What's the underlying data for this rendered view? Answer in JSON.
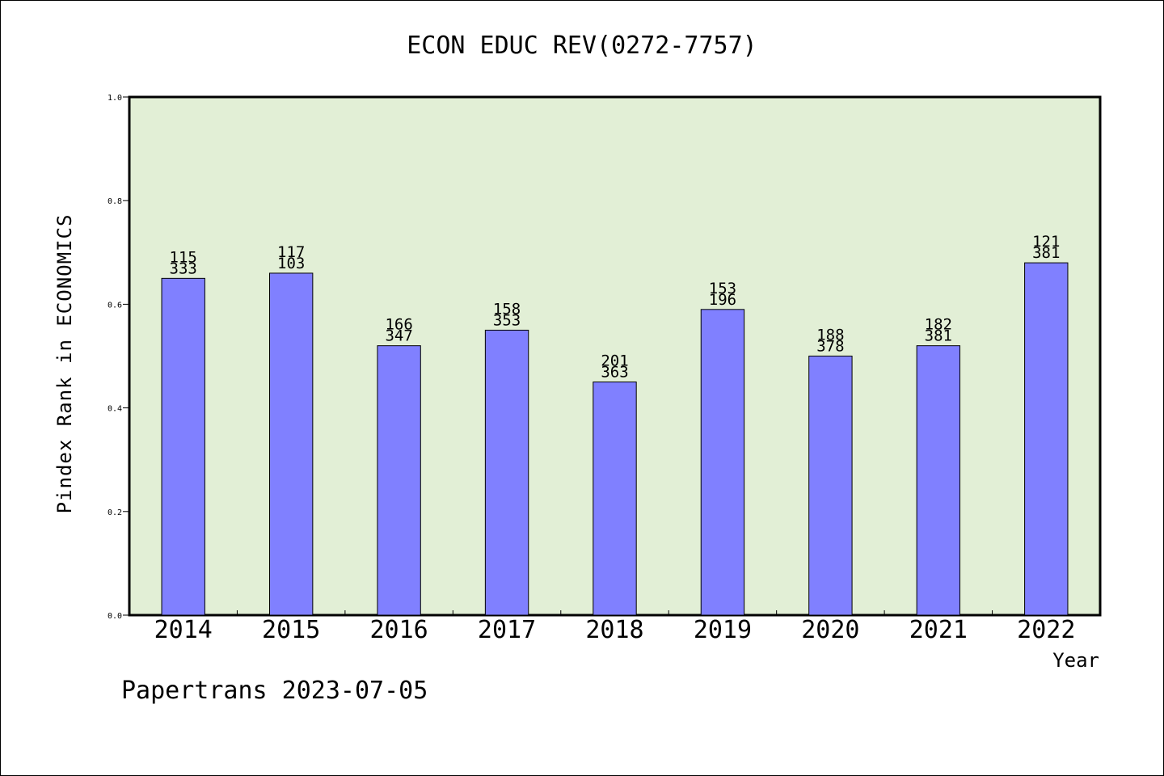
{
  "chart_data": {
    "type": "bar",
    "title": "ECON EDUC REV(0272-7757)",
    "xlabel": "Year",
    "ylabel": "Pindex Rank in ECONOMICS",
    "ylim": [
      0,
      1.0
    ],
    "yticks": [
      "0.0",
      "0.2",
      "0.4",
      "0.6",
      "0.8",
      "1.0"
    ],
    "grid": false,
    "categories": [
      "2014",
      "2015",
      "2016",
      "2017",
      "2018",
      "2019",
      "2020",
      "2021",
      "2022"
    ],
    "values": [
      0.65,
      0.66,
      0.52,
      0.55,
      0.45,
      0.59,
      0.5,
      0.52,
      0.68
    ],
    "labels_top": [
      "115",
      "117",
      "166",
      "158",
      "201",
      "153",
      "188",
      "182",
      "121"
    ],
    "labels_bottom": [
      "333",
      "103",
      "347",
      "353",
      "363",
      "196",
      "378",
      "381",
      "381"
    ],
    "colors": {
      "bar": "#8080ff",
      "plot_background": "#e2efd6"
    }
  },
  "footer": "Papertrans 2023-07-05"
}
